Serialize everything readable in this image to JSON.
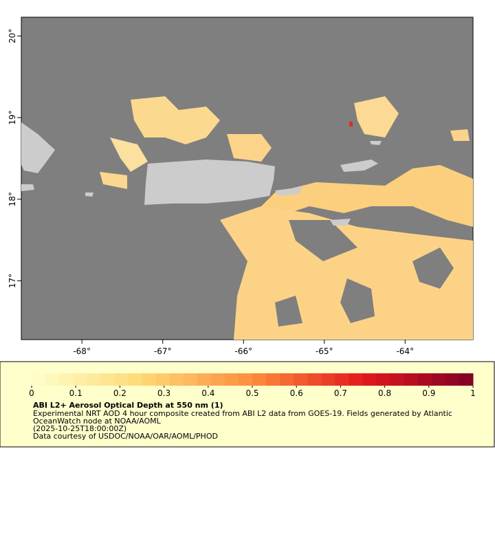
{
  "map": {
    "xlim": [
      -68.75,
      -63.16
    ],
    "ylim": [
      16.28,
      20.23
    ],
    "xticks": [
      {
        "value": -68,
        "label": "-68°"
      },
      {
        "value": -67,
        "label": "-67°"
      },
      {
        "value": -66,
        "label": "-66°"
      },
      {
        "value": -65,
        "label": "-65°"
      },
      {
        "value": -64,
        "label": "-64°"
      }
    ],
    "yticks": [
      {
        "value": 17,
        "label": "17°"
      },
      {
        "value": 18,
        "label": "18°"
      },
      {
        "value": 19,
        "label": "19°"
      },
      {
        "value": 20,
        "label": "20°"
      }
    ]
  },
  "colorbar": {
    "clim": [
      0,
      1
    ],
    "ticks": [
      0,
      0.1,
      0.2,
      0.3,
      0.4,
      0.5,
      0.6,
      0.7,
      0.8,
      0.9,
      1
    ]
  },
  "caption": {
    "title": "ABI L2+ Aerosol Optical Depth at 550 nm (1)",
    "lines": [
      "Experimental NRT AOD 4 hour composite created from ABI L2 data from GOES-19. Fields generated by Atlantic",
      "OceanWatch node at NOAA/AOML",
      "(2025-10-25T18:00:00Z)",
      "Data courtesy of USDOC/NOAA/OAR/AOML/PHOD"
    ]
  }
}
